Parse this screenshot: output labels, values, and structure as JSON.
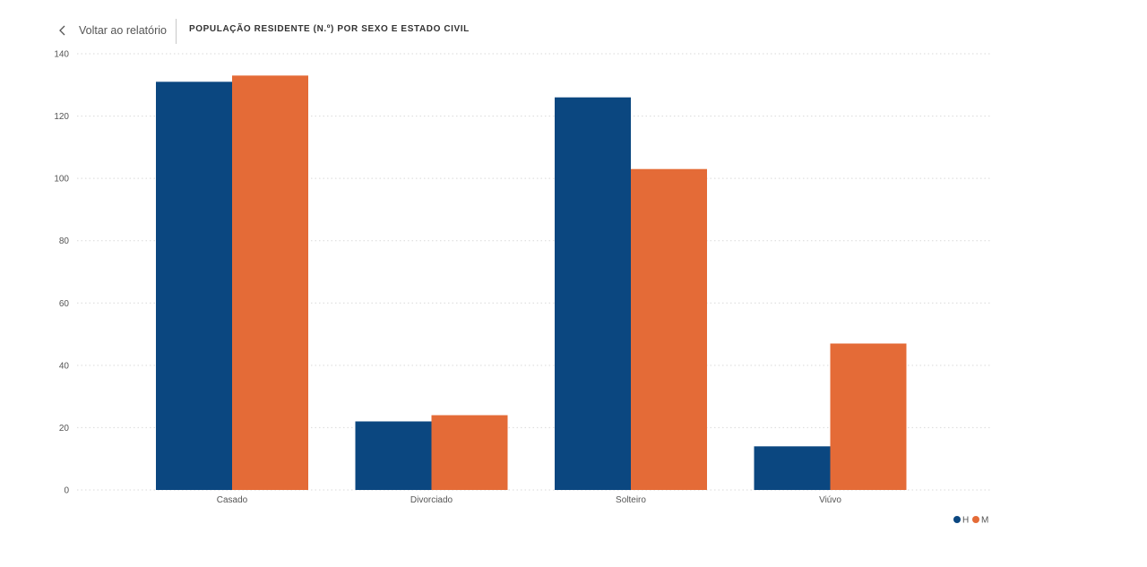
{
  "header": {
    "back_label": "Voltar ao relatório",
    "back_icon": "chevron-left-icon",
    "title": "POPULAÇÃO RESIDENTE (N.º) POR SEXO E ESTADO CIVIL"
  },
  "colors": {
    "H": "#0b4780",
    "M": "#e46b37",
    "grid": "#d9d9d9"
  },
  "chart_data": {
    "type": "bar",
    "title": "POPULAÇÃO RESIDENTE (N.º) POR SEXO E ESTADO CIVIL",
    "xlabel": "",
    "ylabel": "",
    "categories": [
      "Casado",
      "Divorciado",
      "Solteiro",
      "Viúvo"
    ],
    "series": [
      {
        "name": "H",
        "values": [
          131,
          22,
          126,
          14
        ]
      },
      {
        "name": "M",
        "values": [
          133,
          24,
          103,
          47
        ]
      }
    ],
    "ylim": [
      0,
      140
    ],
    "yticks": [
      "0",
      "20",
      "40",
      "60",
      "80",
      "100",
      "120",
      "140"
    ],
    "grid": true,
    "legend_position": "bottom-right"
  }
}
